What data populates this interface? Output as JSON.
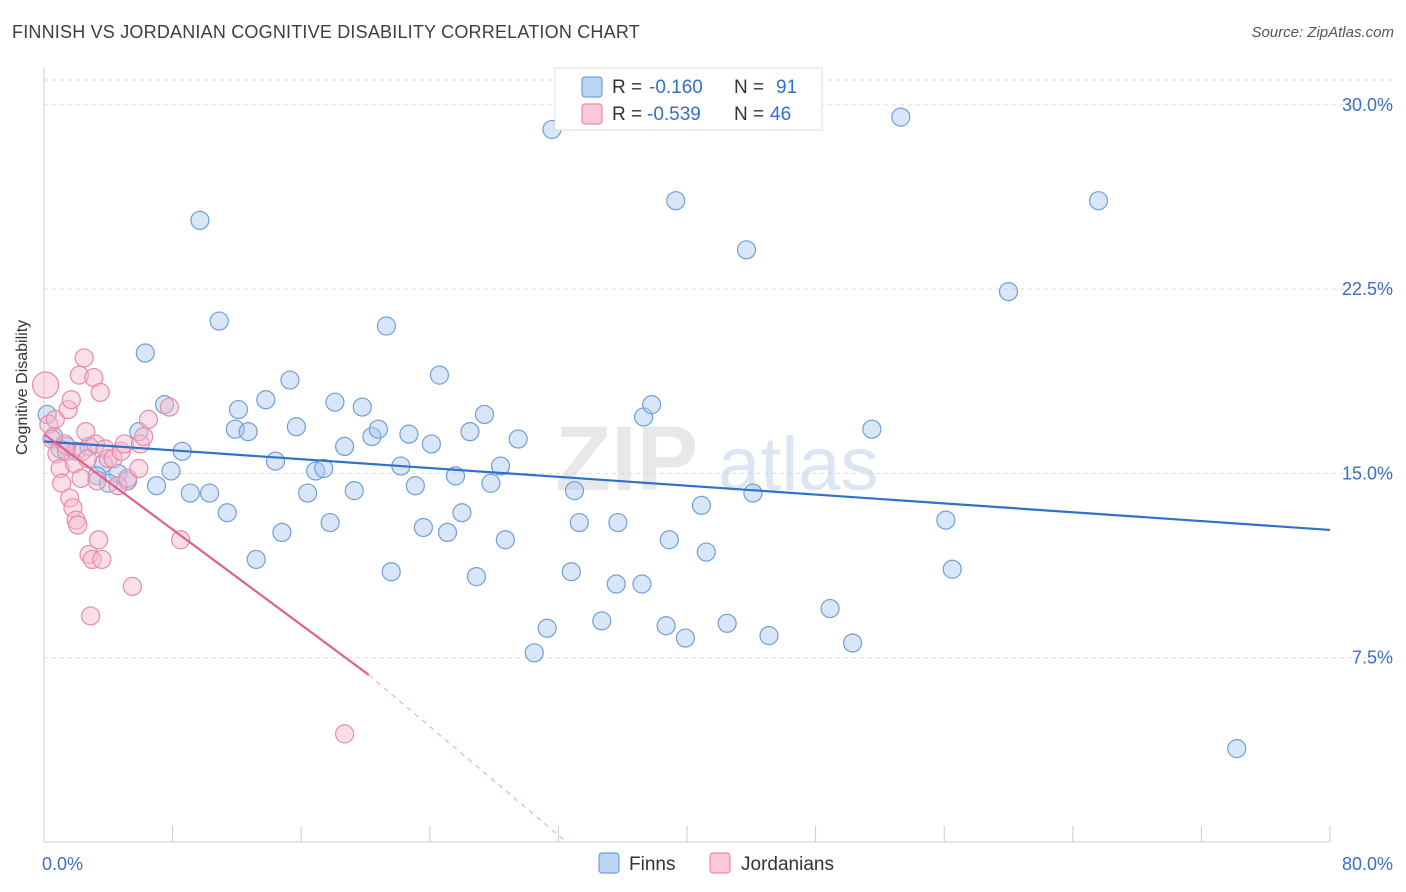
{
  "title": "FINNISH VS JORDANIAN COGNITIVE DISABILITY CORRELATION CHART",
  "source": "Source: ZipAtlas.com",
  "watermark": {
    "zip": "ZIP",
    "atlas": "atlas"
  },
  "legend": {
    "r_label": "R =",
    "n_label": "N =",
    "finns": {
      "r": "-0.160",
      "n": "91"
    },
    "jordanians": {
      "r": "-0.539",
      "n": "46"
    }
  },
  "colors": {
    "finns_fill": "#a9c8ef",
    "finns_stroke": "#6f9fd8",
    "finns_line": "#2f72c9",
    "jordanians_fill": "#f6b9cc",
    "jordanians_stroke": "#e88aa8",
    "jordanians_line": "#e0608f",
    "tick_label": "#3a6fc4",
    "grid": "#dcdcdc"
  },
  "chart_data": {
    "type": "scatter",
    "title": "FINNISH VS JORDANIAN COGNITIVE DISABILITY CORRELATION CHART",
    "xlabel": "",
    "ylabel": "Cognitive Disability",
    "xlim": [
      0,
      80
    ],
    "ylim": [
      0,
      31.5
    ],
    "x_tick_labels": [
      "0.0%",
      "80.0%"
    ],
    "y_ticks": [
      7.5,
      15.0,
      22.5,
      30.0
    ],
    "y_tick_labels": [
      "7.5%",
      "15.0%",
      "22.5%",
      "30.0%"
    ],
    "grid": true,
    "legend_position": "top-center",
    "series": [
      {
        "name": "Finns",
        "r": -0.16,
        "n": 91,
        "trend": {
          "x": [
            0,
            80
          ],
          "y": [
            16.3,
            12.7
          ]
        },
        "points": [
          [
            0.2,
            17.4
          ],
          [
            0.6,
            16.5
          ],
          [
            1.0,
            16.0
          ],
          [
            1.4,
            16.1
          ],
          [
            2.0,
            15.9
          ],
          [
            2.8,
            16.1
          ],
          [
            3.7,
            15.4
          ],
          [
            4.6,
            15.0
          ],
          [
            3.3,
            14.9
          ],
          [
            4.0,
            14.6
          ],
          [
            5.2,
            14.7
          ],
          [
            5.9,
            16.7
          ],
          [
            6.3,
            19.9
          ],
          [
            7.0,
            14.5
          ],
          [
            7.5,
            17.8
          ],
          [
            7.9,
            15.1
          ],
          [
            8.6,
            15.9
          ],
          [
            9.1,
            14.2
          ],
          [
            9.7,
            25.3
          ],
          [
            10.3,
            14.2
          ],
          [
            10.9,
            21.2
          ],
          [
            11.4,
            13.4
          ],
          [
            11.9,
            16.8
          ],
          [
            12.1,
            17.6
          ],
          [
            12.7,
            16.7
          ],
          [
            13.2,
            11.5
          ],
          [
            13.8,
            18.0
          ],
          [
            14.4,
            15.5
          ],
          [
            14.8,
            12.6
          ],
          [
            15.3,
            18.8
          ],
          [
            15.7,
            16.9
          ],
          [
            16.4,
            14.2
          ],
          [
            16.9,
            15.1
          ],
          [
            17.4,
            15.2
          ],
          [
            17.8,
            13.0
          ],
          [
            18.1,
            17.9
          ],
          [
            18.7,
            16.1
          ],
          [
            19.3,
            14.3
          ],
          [
            19.8,
            17.7
          ],
          [
            20.4,
            16.5
          ],
          [
            20.8,
            16.8
          ],
          [
            21.3,
            21.0
          ],
          [
            21.6,
            11.0
          ],
          [
            22.2,
            15.3
          ],
          [
            22.7,
            16.6
          ],
          [
            23.1,
            14.5
          ],
          [
            23.6,
            12.8
          ],
          [
            24.1,
            16.2
          ],
          [
            24.6,
            19.0
          ],
          [
            25.1,
            12.6
          ],
          [
            25.6,
            14.9
          ],
          [
            26.0,
            13.4
          ],
          [
            26.5,
            16.7
          ],
          [
            26.9,
            10.8
          ],
          [
            27.4,
            17.4
          ],
          [
            27.8,
            14.6
          ],
          [
            28.4,
            15.3
          ],
          [
            28.7,
            12.3
          ],
          [
            29.5,
            16.4
          ],
          [
            30.5,
            7.7
          ],
          [
            31.3,
            8.7
          ],
          [
            31.6,
            29.0
          ],
          [
            32.8,
            11.0
          ],
          [
            33.0,
            14.3
          ],
          [
            33.3,
            13.0
          ],
          [
            34.7,
            9.0
          ],
          [
            35.6,
            10.5
          ],
          [
            35.7,
            13.0
          ],
          [
            37.2,
            10.5
          ],
          [
            37.3,
            17.3
          ],
          [
            37.8,
            17.8
          ],
          [
            38.7,
            8.8
          ],
          [
            38.9,
            12.3
          ],
          [
            39.3,
            26.1
          ],
          [
            39.9,
            8.3
          ],
          [
            40.9,
            13.7
          ],
          [
            41.2,
            11.8
          ],
          [
            42.5,
            8.9
          ],
          [
            43.7,
            24.1
          ],
          [
            44.1,
            14.2
          ],
          [
            45.1,
            8.4
          ],
          [
            48.9,
            9.5
          ],
          [
            50.3,
            8.1
          ],
          [
            51.5,
            16.8
          ],
          [
            53.3,
            29.5
          ],
          [
            56.1,
            13.1
          ],
          [
            56.5,
            11.1
          ],
          [
            60.0,
            22.4
          ],
          [
            65.6,
            26.1
          ],
          [
            74.2,
            3.8
          ],
          [
            43.0,
            29.6
          ]
        ]
      },
      {
        "name": "Jordanians",
        "r": -0.539,
        "n": 46,
        "trend": {
          "x": [
            0,
            20.2
          ],
          "y": [
            16.6,
            6.8
          ]
        },
        "trend_dashed": {
          "x": [
            20.2,
            32.5
          ],
          "y": [
            6.8,
            0.0
          ]
        },
        "points": [
          [
            0.1,
            18.6
          ],
          [
            0.3,
            17.0
          ],
          [
            0.5,
            16.4
          ],
          [
            0.7,
            17.2
          ],
          [
            0.8,
            15.8
          ],
          [
            1.0,
            15.2
          ],
          [
            1.1,
            14.6
          ],
          [
            1.3,
            16.2
          ],
          [
            1.4,
            15.9
          ],
          [
            1.5,
            17.6
          ],
          [
            1.6,
            14.0
          ],
          [
            1.7,
            18.0
          ],
          [
            1.8,
            13.6
          ],
          [
            1.9,
            15.4
          ],
          [
            2.0,
            13.1
          ],
          [
            2.1,
            12.9
          ],
          [
            2.2,
            19.0
          ],
          [
            2.3,
            14.8
          ],
          [
            2.4,
            15.9
          ],
          [
            2.5,
            19.7
          ],
          [
            2.6,
            16.7
          ],
          [
            2.7,
            15.6
          ],
          [
            2.8,
            11.7
          ],
          [
            2.9,
            9.2
          ],
          [
            3.0,
            11.5
          ],
          [
            3.1,
            18.9
          ],
          [
            3.2,
            16.2
          ],
          [
            3.3,
            14.7
          ],
          [
            3.4,
            12.3
          ],
          [
            3.5,
            18.3
          ],
          [
            3.6,
            11.5
          ],
          [
            3.8,
            16.0
          ],
          [
            4.0,
            15.6
          ],
          [
            4.3,
            15.6
          ],
          [
            4.6,
            14.5
          ],
          [
            4.8,
            15.9
          ],
          [
            5.0,
            16.2
          ],
          [
            5.2,
            14.8
          ],
          [
            5.5,
            10.4
          ],
          [
            5.9,
            15.2
          ],
          [
            6.0,
            16.2
          ],
          [
            6.2,
            16.5
          ],
          [
            6.5,
            17.2
          ],
          [
            7.8,
            17.7
          ],
          [
            8.5,
            12.3
          ],
          [
            18.7,
            4.4
          ]
        ]
      }
    ]
  }
}
